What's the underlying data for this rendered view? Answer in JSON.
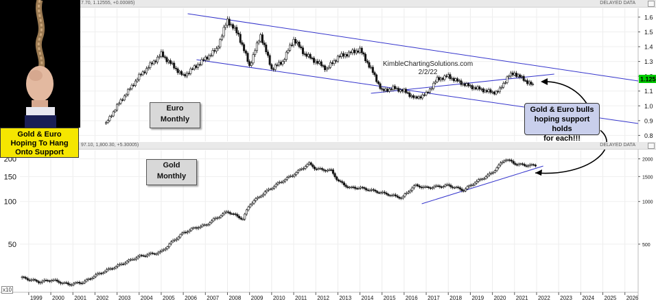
{
  "header_top": {
    "info": "7.70, 1.12555, +0.00085)",
    "delayed": "DELAYED DATA"
  },
  "header_bottom": {
    "info": "97.10, 1,800.30, +5.30005)",
    "delayed": "DELAYED DATA"
  },
  "photo_caption": [
    "Gold & Euro",
    "Hoping To Hang",
    "Onto Support"
  ],
  "euro_label": [
    "Euro",
    "Monthly"
  ],
  "gold_label": [
    "Gold",
    "Monthly"
  ],
  "watermark": [
    "KimbleChartingSolutions.com",
    "2/2/22"
  ],
  "note": [
    "Gold & Euro bulls",
    "hoping support holds",
    "for each!!!"
  ],
  "x10_label": "x10",
  "colors": {
    "channel": "#3333cc",
    "price_badge": "#00cc00",
    "note_bg": "#c9cfec",
    "caption_bg": "#f5e600"
  },
  "chart_data": [
    {
      "type": "candlestick",
      "name": "Euro Monthly",
      "last_price_badge": "1.125",
      "x": [
        2002.5,
        2003,
        2004,
        2005,
        2006,
        2007,
        2007.5,
        2008,
        2008.5,
        2009,
        2009.5,
        2010,
        2010.5,
        2011,
        2011.5,
        2012,
        2012.5,
        2013,
        2014,
        2014.5,
        2015,
        2015.5,
        2016,
        2016.5,
        2017,
        2017.5,
        2018,
        2018.5,
        2019,
        2019.5,
        2020,
        2020.3,
        2020.7,
        2021,
        2021.5,
        2021.9
      ],
      "y": [
        0.88,
        1.0,
        1.2,
        1.35,
        1.2,
        1.32,
        1.38,
        1.58,
        1.48,
        1.27,
        1.48,
        1.25,
        1.3,
        1.45,
        1.35,
        1.3,
        1.25,
        1.33,
        1.38,
        1.25,
        1.1,
        1.12,
        1.1,
        1.05,
        1.08,
        1.18,
        1.2,
        1.16,
        1.13,
        1.11,
        1.09,
        1.1,
        1.2,
        1.22,
        1.17,
        1.13
      ],
      "yticks": [
        "1.6",
        "1.5",
        "1.4",
        "1.3",
        "1.2",
        "1.1",
        "1.0",
        "0.9",
        "0.8"
      ],
      "ylim": [
        0.76,
        1.66
      ],
      "annotations": [
        "descending channel upper line",
        "descending channel lower line",
        "rising support line"
      ]
    },
    {
      "type": "candlestick",
      "name": "Gold Monthly",
      "scale": "log",
      "x": [
        1998.7,
        1999.5,
        2000,
        2000.8,
        2001.5,
        2002,
        2003,
        2004,
        2005,
        2006,
        2006.5,
        2007,
        2008,
        2008.7,
        2009,
        2010,
        2011,
        2011.7,
        2012,
        2012.7,
        2013,
        2013.5,
        2014,
        2015,
        2015.9,
        2016.5,
        2017,
        2018,
        2018.7,
        2019,
        2019.7,
        2020,
        2020.6,
        2021,
        2021.5,
        2022
      ],
      "y": [
        29,
        27,
        28,
        26,
        27,
        30,
        35,
        41,
        44,
        60,
        65,
        68,
        85,
        75,
        95,
        125,
        155,
        185,
        170,
        165,
        140,
        125,
        125,
        115,
        106,
        130,
        125,
        130,
        120,
        130,
        150,
        160,
        200,
        185,
        180,
        180
      ],
      "yticks_left": [
        "200",
        "150",
        "100",
        "50"
      ],
      "yticks_right": [
        "2000",
        "1500",
        "1000",
        "500"
      ],
      "ylim": [
        25,
        230
      ],
      "annotations": [
        "rising support line"
      ]
    }
  ],
  "x_axis": {
    "labels": [
      "1999",
      "2000",
      "2001",
      "2002",
      "2003",
      "2004",
      "2005",
      "2006",
      "2007",
      "2008",
      "2009",
      "2010",
      "2011",
      "2012",
      "2013",
      "2014",
      "2015",
      "2016",
      "2017",
      "2018",
      "2019",
      "2020",
      "2021",
      "2022",
      "2023",
      "2024",
      "2025",
      "2026"
    ]
  }
}
